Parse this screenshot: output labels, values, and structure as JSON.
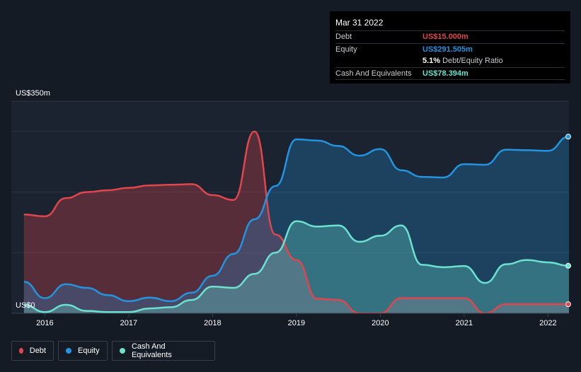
{
  "tooltip": {
    "date": "Mar 31 2022",
    "debt_label": "Debt",
    "debt_value": "US$15.000m",
    "equity_label": "Equity",
    "equity_value": "US$291.505m",
    "ratio_value": "5.1%",
    "ratio_label": "Debt/Equity Ratio",
    "cash_label": "Cash And Equivalents",
    "cash_value": "US$78.394m"
  },
  "colors": {
    "debt": "#e0464d",
    "equity": "#2394df",
    "cash": "#6be2cf",
    "background": "#151b24"
  },
  "legend": [
    {
      "key": "debt",
      "label": "Debt"
    },
    {
      "key": "equity",
      "label": "Equity"
    },
    {
      "key": "cash",
      "label": "Cash And Equivalents"
    }
  ],
  "chart_data": {
    "type": "area",
    "y_top_label": "US$350m",
    "y_bottom_label": "US$0",
    "ylim": [
      0,
      350
    ],
    "xlim": [
      2015.6,
      2022.25
    ],
    "x_ticks": [
      2016,
      2017,
      2018,
      2019,
      2020,
      2021,
      2022
    ],
    "series": [
      {
        "name": "Debt",
        "key": "debt",
        "x": [
          2015.75,
          2016.0,
          2016.25,
          2016.5,
          2016.75,
          2017.0,
          2017.25,
          2017.5,
          2017.75,
          2018.0,
          2018.25,
          2018.5,
          2018.75,
          2019.0,
          2019.25,
          2019.5,
          2019.75,
          2020.0,
          2020.25,
          2020.5,
          2020.75,
          2021.0,
          2021.25,
          2021.5,
          2021.75,
          2022.0,
          2022.25
        ],
        "values": [
          163,
          160,
          190,
          200,
          203,
          207,
          211,
          212,
          213,
          195,
          187,
          300,
          130,
          88,
          24,
          22,
          0,
          0,
          25,
          25,
          25,
          25,
          0,
          15,
          15,
          15,
          15
        ]
      },
      {
        "name": "Equity",
        "key": "equity",
        "x": [
          2015.75,
          2016.0,
          2016.25,
          2016.5,
          2016.75,
          2017.0,
          2017.25,
          2017.5,
          2017.75,
          2018.0,
          2018.25,
          2018.5,
          2018.75,
          2019.0,
          2019.25,
          2019.5,
          2019.75,
          2020.0,
          2020.25,
          2020.5,
          2020.75,
          2021.0,
          2021.25,
          2021.5,
          2021.75,
          2022.0,
          2022.25
        ],
        "values": [
          52,
          25,
          48,
          42,
          30,
          20,
          26,
          20,
          34,
          62,
          98,
          155,
          210,
          287,
          285,
          276,
          260,
          271,
          236,
          225,
          224,
          246,
          245,
          270,
          269,
          268,
          291.5
        ]
      },
      {
        "name": "Cash And Equivalents",
        "key": "cash",
        "x": [
          2015.75,
          2016.0,
          2016.25,
          2016.5,
          2016.75,
          2017.0,
          2017.25,
          2017.5,
          2017.75,
          2018.0,
          2018.25,
          2018.5,
          2018.75,
          2019.0,
          2019.25,
          2019.5,
          2019.75,
          2020.0,
          2020.25,
          2020.5,
          2020.75,
          2021.0,
          2021.25,
          2021.5,
          2021.75,
          2022.0,
          2022.25
        ],
        "values": [
          14,
          2,
          14,
          4,
          2,
          2,
          8,
          10,
          22,
          44,
          42,
          65,
          100,
          152,
          143,
          145,
          118,
          128,
          145,
          80,
          76,
          78,
          50,
          81,
          88,
          84,
          78.4
        ]
      }
    ]
  }
}
